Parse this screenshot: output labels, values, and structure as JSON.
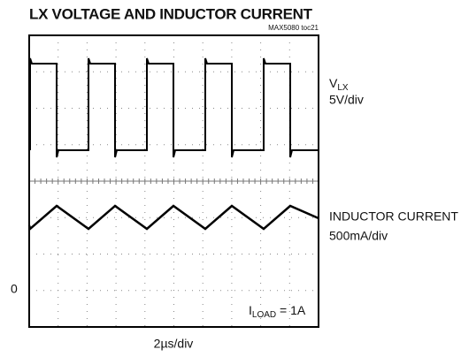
{
  "title": "LX VOLTAGE AND INDUCTOR CURRENT",
  "figure_id": "MAX5080 toc21",
  "traces": [
    {
      "name": "V",
      "name_sub": "LX",
      "scale": "5V/div"
    },
    {
      "name": "INDUCTOR CURRENT",
      "scale": "500mA/div"
    }
  ],
  "zero_marker": "0",
  "load": {
    "symbol": "I",
    "sub": "LOAD",
    "value": " = 1A"
  },
  "time_scale": "2µs/div"
}
